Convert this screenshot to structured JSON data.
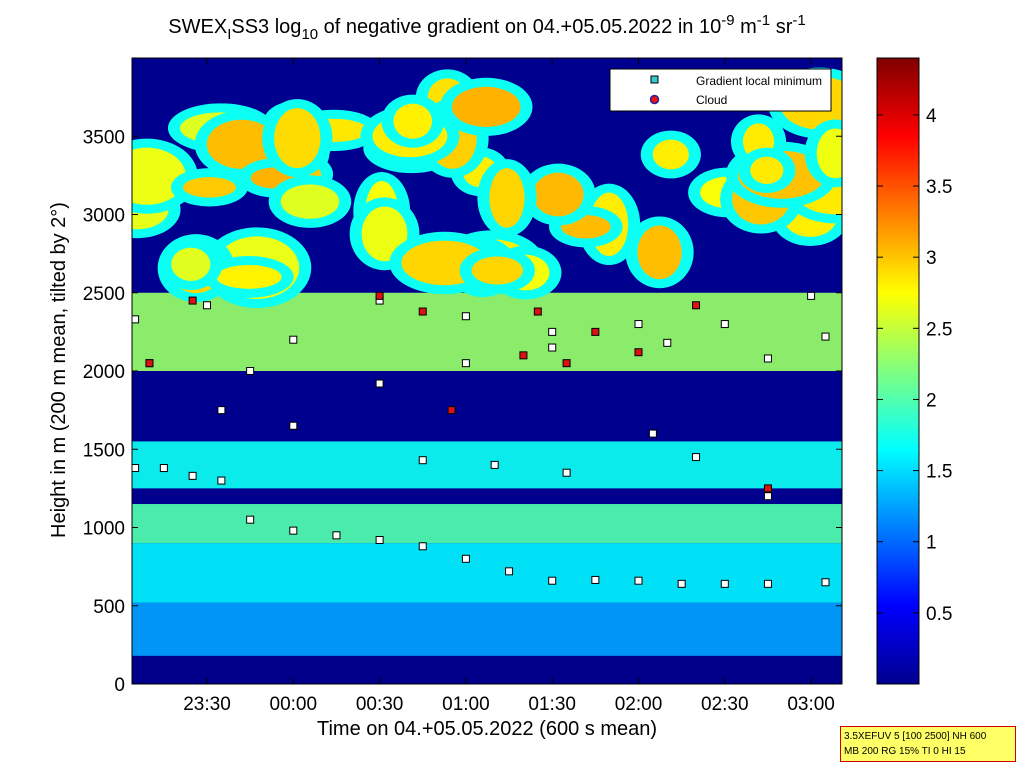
{
  "chart_data": {
    "type": "heatmap",
    "title_parts": {
      "a": "SWEX",
      "b": "I",
      "c": "SS3 log",
      "d": "10",
      "e": " of negative gradient on 04.+05.05.2022 in 10",
      "f": "-9",
      "g": " m",
      "h": "-1",
      "i": " sr",
      "j": "-1"
    },
    "xlabel": "Time on 04.+05.05.2022 (600 s mean)",
    "ylabel": "Height in m (200 m mean, tilted by 2°)",
    "x_ticks": [
      "23:30",
      "00:00",
      "00:30",
      "01:00",
      "01:30",
      "02:00",
      "02:30",
      "03:00"
    ],
    "y_ticks": [
      "0",
      "500",
      "1000",
      "1500",
      "2000",
      "2500",
      "3000",
      "3500"
    ],
    "y_range": [
      0,
      4000
    ],
    "colorbar": {
      "range": [
        0,
        4.4
      ],
      "ticks": [
        "0.5",
        "1",
        "1.5",
        "2",
        "2.5",
        "3",
        "3.5",
        "4"
      ],
      "colormap": "jet"
    },
    "legend": {
      "placement": "top-right",
      "items": [
        {
          "label": "Gradient local minimum",
          "color": "#33cccc",
          "marker": "square"
        },
        {
          "label": "Cloud",
          "color": "#ee1111",
          "marker": "circle"
        }
      ]
    },
    "layers": [
      {
        "name": "ground",
        "ymin": 0,
        "ymax": 180,
        "level": 0.05
      },
      {
        "name": "surface-band",
        "ymin": 180,
        "ymax": 520,
        "level": 1.25
      },
      {
        "name": "low-band",
        "ymin": 520,
        "ymax": 900,
        "level": 1.6
      },
      {
        "name": "boundary-band",
        "ymin": 900,
        "ymax": 1150,
        "level": 2.0
      },
      {
        "name": "mid-band",
        "ymin": 1250,
        "ymax": 1550,
        "level": 1.7
      },
      {
        "name": "upper-band",
        "ymin": 2000,
        "ymax": 2500,
        "level": 2.3
      },
      {
        "name": "top-patches",
        "ymin": 2600,
        "ymax": 3800,
        "level": 2.6
      }
    ],
    "series": [
      {
        "name": "Gradient local minimum",
        "points": [
          {
            "t": "23:05",
            "h": 1380
          },
          {
            "t": "23:15",
            "h": 1380
          },
          {
            "t": "23:25",
            "h": 1330
          },
          {
            "t": "23:35",
            "h": 1300
          },
          {
            "t": "23:45",
            "h": 1050
          },
          {
            "t": "00:00",
            "h": 980
          },
          {
            "t": "00:15",
            "h": 950
          },
          {
            "t": "00:30",
            "h": 920
          },
          {
            "t": "00:45",
            "h": 880
          },
          {
            "t": "01:00",
            "h": 800
          },
          {
            "t": "01:15",
            "h": 720
          },
          {
            "t": "01:30",
            "h": 660
          },
          {
            "t": "01:45",
            "h": 665
          },
          {
            "t": "02:00",
            "h": 660
          },
          {
            "t": "02:15",
            "h": 640
          },
          {
            "t": "02:30",
            "h": 640
          },
          {
            "t": "02:45",
            "h": 640
          },
          {
            "t": "03:05",
            "h": 650
          },
          {
            "t": "23:05",
            "h": 2330
          },
          {
            "t": "23:30",
            "h": 2420
          },
          {
            "t": "00:00",
            "h": 2200
          },
          {
            "t": "00:30",
            "h": 2450
          },
          {
            "t": "01:00",
            "h": 2350
          },
          {
            "t": "01:30",
            "h": 2250
          },
          {
            "t": "02:00",
            "h": 2300
          },
          {
            "t": "02:30",
            "h": 2300
          },
          {
            "t": "03:00",
            "h": 2480
          },
          {
            "t": "23:10",
            "h": 2050
          },
          {
            "t": "23:45",
            "h": 2000
          },
          {
            "t": "00:30",
            "h": 1920
          },
          {
            "t": "01:00",
            "h": 2050
          },
          {
            "t": "01:30",
            "h": 2150
          },
          {
            "t": "02:10",
            "h": 2180
          },
          {
            "t": "02:45",
            "h": 2080
          },
          {
            "t": "03:05",
            "h": 2220
          },
          {
            "t": "23:35",
            "h": 1750
          },
          {
            "t": "00:00",
            "h": 1650
          },
          {
            "t": "00:45",
            "h": 1430
          },
          {
            "t": "01:10",
            "h": 1400
          },
          {
            "t": "01:35",
            "h": 1350
          },
          {
            "t": "02:05",
            "h": 1600
          },
          {
            "t": "02:20",
            "h": 1450
          },
          {
            "t": "02:45",
            "h": 1200
          }
        ]
      },
      {
        "name": "Cloud",
        "points": [
          {
            "t": "23:10",
            "h": 2050
          },
          {
            "t": "23:25",
            "h": 2450
          },
          {
            "t": "00:30",
            "h": 2480
          },
          {
            "t": "00:45",
            "h": 2380
          },
          {
            "t": "00:55",
            "h": 1750
          },
          {
            "t": "01:20",
            "h": 2100
          },
          {
            "t": "01:25",
            "h": 2380
          },
          {
            "t": "01:35",
            "h": 2050
          },
          {
            "t": "01:45",
            "h": 2250
          },
          {
            "t": "02:00",
            "h": 2120
          },
          {
            "t": "02:20",
            "h": 2420
          },
          {
            "t": "02:45",
            "h": 1250
          }
        ]
      }
    ]
  },
  "info_box": {
    "line1": "3.5XEFUV 5 [100 2500] NH 600",
    "line2": "MB 200 RG 15% TI 0 HI 15"
  }
}
